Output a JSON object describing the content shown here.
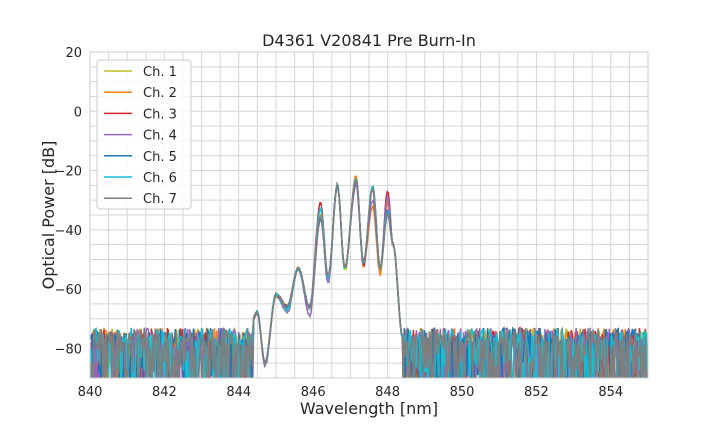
{
  "chart_data": {
    "type": "line",
    "title": "D4361 V20841 Pre Burn-In",
    "xlabel": "Wavelength [nm]",
    "ylabel": "Optical Power [dB]",
    "xlim": [
      840,
      855
    ],
    "ylim": [
      -90,
      20
    ],
    "xticks": [
      840,
      842,
      844,
      846,
      848,
      850,
      852,
      854
    ],
    "yticks": [
      20,
      0,
      -20,
      -40,
      -60,
      -80
    ],
    "grid": true,
    "legend_position": "top-left",
    "noise_floor_db": [
      -90,
      -72
    ],
    "signal_band_nm": [
      844.4,
      848.4
    ],
    "x": [
      844.3,
      844.5,
      844.7,
      845.0,
      845.3,
      845.6,
      845.9,
      846.2,
      846.4,
      846.65,
      846.85,
      847.15,
      847.35,
      847.6,
      847.8,
      848.0,
      848.15,
      848.4
    ],
    "series": [
      {
        "name": "Ch. 1",
        "color": "#bcbd22",
        "y": [
          -72,
          -68,
          -85,
          -62,
          -66,
          -53,
          -66,
          -36,
          -56,
          -25,
          -54,
          -23,
          -51,
          -25,
          -53,
          -30,
          -45,
          -76
        ]
      },
      {
        "name": "Ch. 2",
        "color": "#ff7f0e",
        "y": [
          -72,
          -68,
          -85,
          -62,
          -66,
          -53,
          -66,
          -35,
          -56,
          -25,
          -53,
          -22,
          -52,
          -32,
          -55,
          -31,
          -45,
          -76
        ]
      },
      {
        "name": "Ch. 3",
        "color": "#d62728",
        "y": [
          -72,
          -68,
          -85,
          -62,
          -66,
          -53,
          -66,
          -31,
          -56,
          -25,
          -53,
          -23,
          -52,
          -26,
          -53,
          -27,
          -45,
          -76
        ]
      },
      {
        "name": "Ch. 4",
        "color": "#9467bd",
        "y": [
          -72,
          -68,
          -86,
          -62,
          -68,
          -53,
          -69,
          -36,
          -58,
          -25,
          -53,
          -25,
          -51,
          -30,
          -53,
          -29,
          -45,
          -76
        ]
      },
      {
        "name": "Ch. 5",
        "color": "#1f77b4",
        "y": [
          -72,
          -68,
          -85,
          -62,
          -66,
          -53,
          -66,
          -36,
          -56,
          -25,
          -53,
          -23,
          -51,
          -25,
          -53,
          -33,
          -45,
          -76
        ]
      },
      {
        "name": "Ch. 6",
        "color": "#17becf",
        "y": [
          -72,
          -68,
          -85,
          -62,
          -67,
          -53,
          -66,
          -33,
          -56,
          -25,
          -53,
          -23,
          -51,
          -25,
          -53,
          -34,
          -45,
          -76
        ]
      },
      {
        "name": "Ch. 7",
        "color": "#7f7f7f",
        "y": [
          -72,
          -68,
          -85,
          -62,
          -66,
          -53,
          -66,
          -36,
          -56,
          -25,
          -53,
          -23,
          -51,
          -26,
          -53,
          -35,
          -45,
          -76
        ]
      }
    ]
  }
}
